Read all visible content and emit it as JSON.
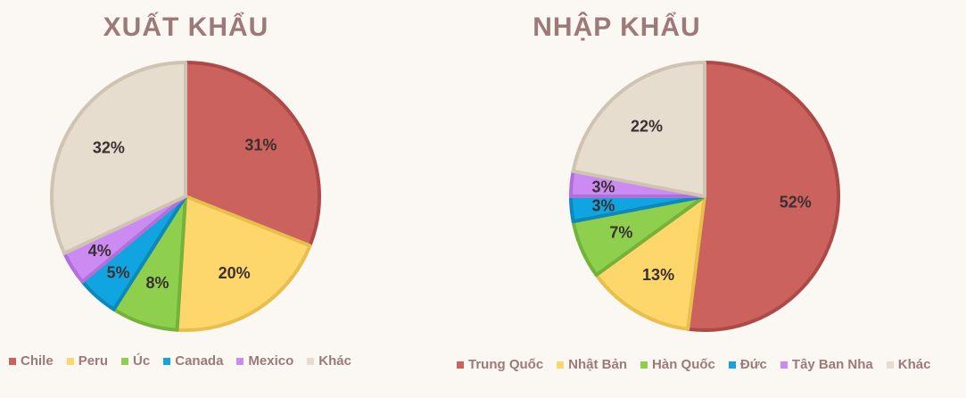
{
  "colors": {
    "background": "#fbf7f3",
    "title": "#9c7a79"
  },
  "chart_data": [
    {
      "type": "pie",
      "title": "XUẤT KHẨU",
      "categories": [
        "Chile",
        "Peru",
        "Úc",
        "Canada",
        "Mexico",
        "Khác"
      ],
      "values": [
        31,
        20,
        8,
        5,
        4,
        32
      ],
      "labels": [
        "31%",
        "20%",
        "8%",
        "5%",
        "4%",
        "32%"
      ],
      "colors": [
        "#cc625e",
        "#fdd76b",
        "#8fcf4e",
        "#10a5e0",
        "#cc8bf2",
        "#e6ddce"
      ],
      "strokes": [
        "#ad4a47",
        "#e8bf4d",
        "#74b23a",
        "#0d88bc",
        "#b070d8",
        "#cfc4b2"
      ],
      "start_angle_deg": 0,
      "legend_position": "bottom"
    },
    {
      "type": "pie",
      "title": "NHẬP KHẨU",
      "categories": [
        "Trung Quốc",
        "Nhật Bản",
        "Hàn Quốc",
        "Đức",
        "Tây Ban Nha",
        "Khác"
      ],
      "values": [
        52,
        13,
        7,
        3,
        3,
        22
      ],
      "labels": [
        "52%",
        "13%",
        "7%",
        "3%",
        "3%",
        "22%"
      ],
      "colors": [
        "#cc625e",
        "#fdd76b",
        "#8fcf4e",
        "#10a5e0",
        "#cc8bf2",
        "#e6ddce"
      ],
      "strokes": [
        "#ad4a47",
        "#e8bf4d",
        "#74b23a",
        "#0d88bc",
        "#b070d8",
        "#cfc4b2"
      ],
      "start_angle_deg": 0,
      "legend_position": "bottom"
    }
  ]
}
